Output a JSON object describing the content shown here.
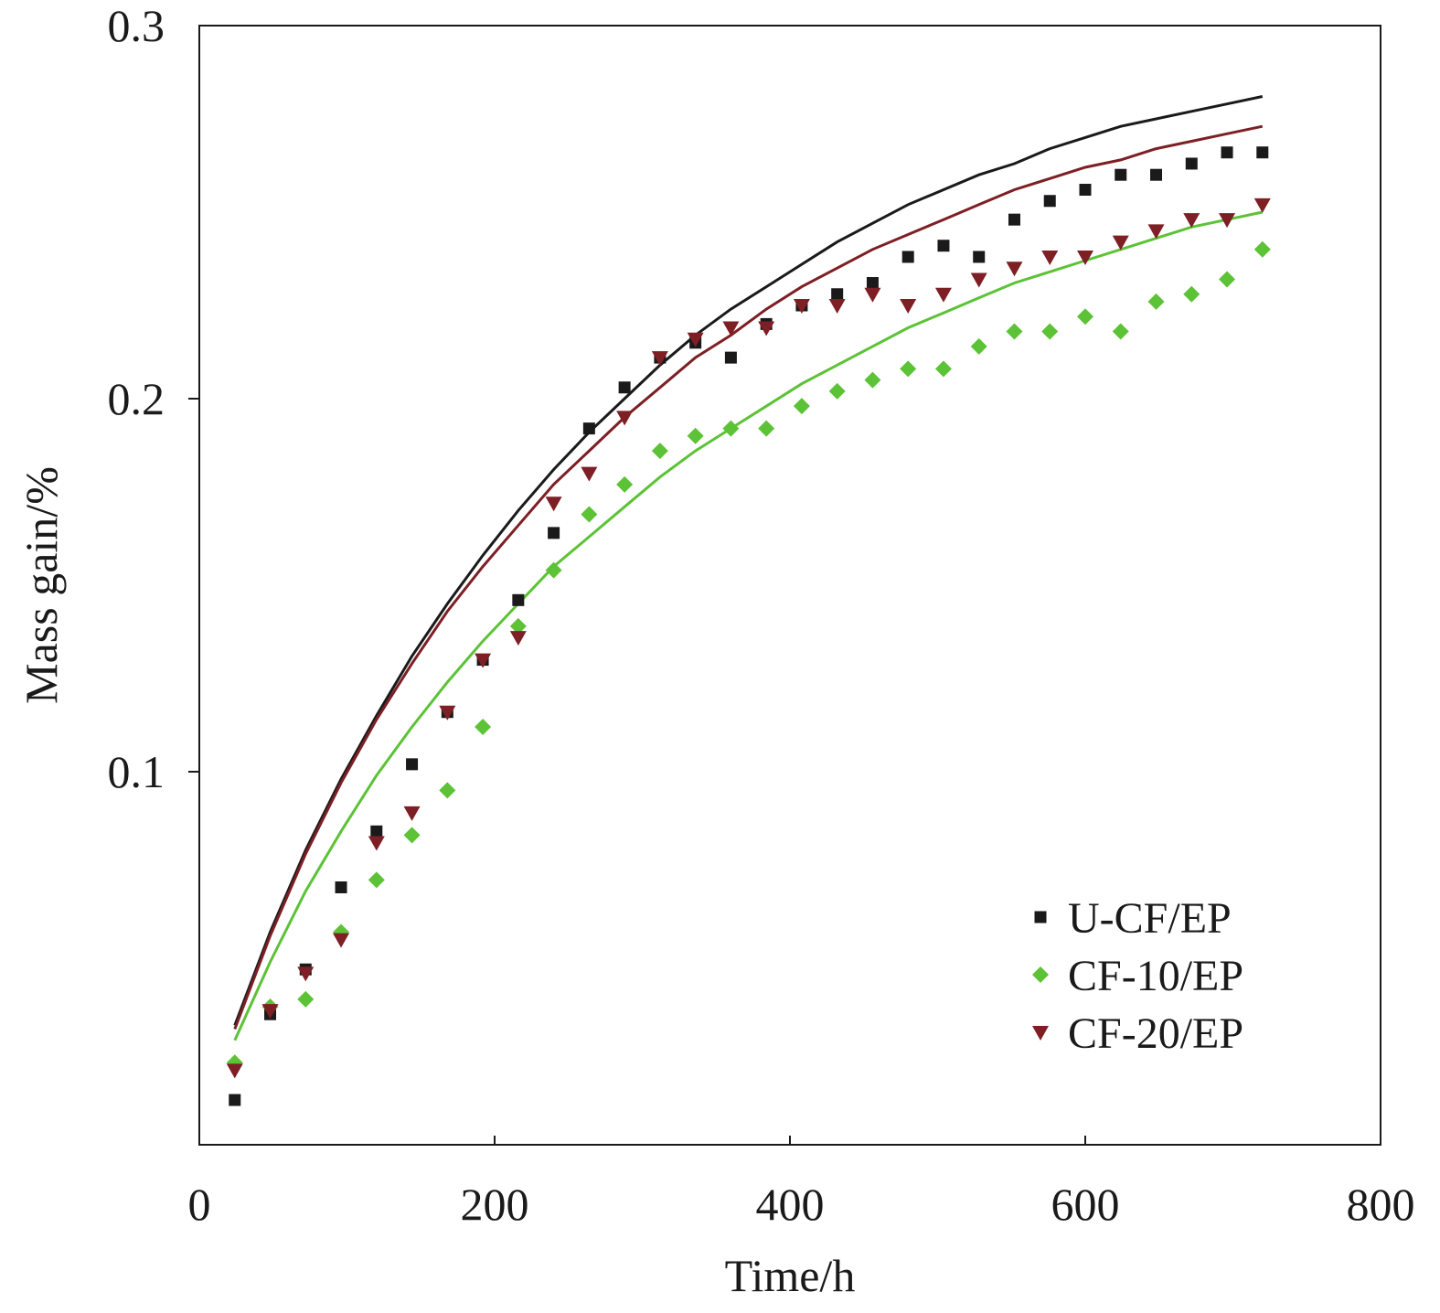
{
  "chart_data": {
    "type": "scatter",
    "title": "",
    "xlabel": "Time/h",
    "ylabel": "Mass gain/%",
    "xlim": [
      0,
      800
    ],
    "ylim": [
      0.0,
      0.3
    ],
    "xticks": [
      0,
      200,
      400,
      600,
      800
    ],
    "xtick_labels": [
      "0",
      "200",
      "400",
      "600",
      "800"
    ],
    "yticks": [
      0.1,
      0.2,
      0.3
    ],
    "ytick_labels": [
      "0.1",
      "0.2",
      "0.3"
    ],
    "grid": false,
    "legend_position": "bottom-right",
    "x": [
      24,
      48,
      72,
      96,
      120,
      144,
      168,
      192,
      216,
      240,
      264,
      288,
      312,
      336,
      360,
      384,
      408,
      432,
      456,
      480,
      504,
      528,
      552,
      576,
      600,
      624,
      648,
      672,
      696,
      720
    ],
    "series": [
      {
        "name": "U-CF/EP",
        "marker": "square",
        "color": "#1a1a1a",
        "fit_color": "#1a1a1a",
        "values": [
          0.012,
          0.035,
          0.047,
          0.069,
          0.084,
          0.102,
          0.116,
          0.13,
          0.146,
          0.164,
          0.192,
          0.203,
          0.211,
          0.215,
          0.211,
          0.22,
          0.225,
          0.228,
          0.231,
          0.238,
          0.241,
          0.238,
          0.248,
          0.253,
          0.256,
          0.26,
          0.26,
          0.263,
          0.266,
          0.266
        ],
        "fit": [
          0.032,
          0.057,
          0.079,
          0.098,
          0.115,
          0.131,
          0.145,
          0.158,
          0.17,
          0.181,
          0.191,
          0.2,
          0.209,
          0.217,
          0.224,
          0.23,
          0.236,
          0.242,
          0.247,
          0.252,
          0.256,
          0.26,
          0.263,
          0.267,
          0.27,
          0.273,
          0.275,
          0.277,
          0.279,
          0.281
        ]
      },
      {
        "name": "CF-10/EP",
        "marker": "diamond",
        "color": "#5cc236",
        "fit_color": "#5cc236",
        "values": [
          0.022,
          0.037,
          0.039,
          0.057,
          0.071,
          0.083,
          0.095,
          0.112,
          0.139,
          0.154,
          0.169,
          0.177,
          0.186,
          0.19,
          0.192,
          0.192,
          0.198,
          0.202,
          0.205,
          0.208,
          0.208,
          0.214,
          0.218,
          0.218,
          0.222,
          0.218,
          0.226,
          0.228,
          0.232,
          0.24
        ],
        "fit": [
          0.028,
          0.049,
          0.068,
          0.084,
          0.099,
          0.112,
          0.124,
          0.135,
          0.145,
          0.155,
          0.163,
          0.171,
          0.179,
          0.186,
          0.192,
          0.198,
          0.204,
          0.209,
          0.214,
          0.219,
          0.223,
          0.227,
          0.231,
          0.234,
          0.237,
          0.24,
          0.243,
          0.246,
          0.248,
          0.25
        ]
      },
      {
        "name": "CF-20/EP",
        "marker": "triangle-down",
        "color": "#7d1f24",
        "fit_color": "#7d1f24",
        "values": [
          0.02,
          0.036,
          0.046,
          0.055,
          0.081,
          0.089,
          0.116,
          0.13,
          0.136,
          0.172,
          0.18,
          0.195,
          0.211,
          0.216,
          0.219,
          0.219,
          0.225,
          0.225,
          0.228,
          0.225,
          0.228,
          0.232,
          0.235,
          0.238,
          0.238,
          0.242,
          0.245,
          0.248,
          0.248,
          0.252
        ],
        "fit": [
          0.031,
          0.056,
          0.078,
          0.097,
          0.114,
          0.129,
          0.143,
          0.155,
          0.166,
          0.177,
          0.186,
          0.195,
          0.203,
          0.211,
          0.217,
          0.224,
          0.23,
          0.235,
          0.24,
          0.244,
          0.248,
          0.252,
          0.256,
          0.259,
          0.262,
          0.264,
          0.267,
          0.269,
          0.271,
          0.273
        ]
      }
    ]
  }
}
